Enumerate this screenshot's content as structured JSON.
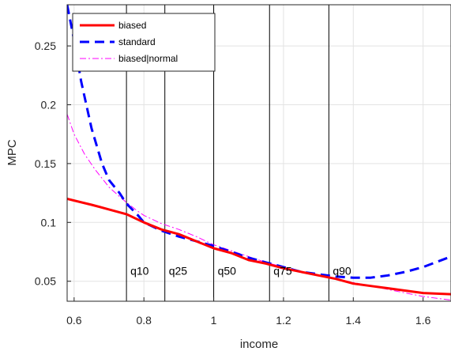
{
  "chart_data": {
    "type": "line",
    "title": "",
    "xlabel": "income",
    "ylabel": "MPC",
    "xlim": [
      0.58,
      1.68
    ],
    "ylim": [
      0.033,
      0.285
    ],
    "xticks": [
      0.6,
      0.8,
      1,
      1.2,
      1.4,
      1.6
    ],
    "xtick_labels": [
      "0.6",
      "0.8",
      "1",
      "1.2",
      "1.4",
      "1.6"
    ],
    "yticks": [
      0.05,
      0.1,
      0.15,
      0.2,
      0.25
    ],
    "ytick_labels": [
      "0.05",
      "0.1",
      "0.15",
      "0.2",
      "0.25"
    ],
    "grid": true,
    "legend_position": "top-left",
    "series": [
      {
        "name": "biased",
        "color": "#ff0000",
        "style": "solid",
        "x": [
          0.58,
          0.65,
          0.7,
          0.75,
          0.8,
          0.85,
          0.9,
          0.95,
          1.0,
          1.05,
          1.1,
          1.15,
          1.2,
          1.25,
          1.3,
          1.35,
          1.4,
          1.45,
          1.5,
          1.55,
          1.6,
          1.68
        ],
        "y": [
          0.12,
          0.115,
          0.111,
          0.107,
          0.1,
          0.094,
          0.09,
          0.084,
          0.078,
          0.074,
          0.068,
          0.065,
          0.061,
          0.058,
          0.055,
          0.052,
          0.048,
          0.046,
          0.044,
          0.042,
          0.04,
          0.039
        ]
      },
      {
        "name": "standard",
        "color": "#0000ff",
        "style": "dashed",
        "x": [
          0.58,
          0.6,
          0.62,
          0.65,
          0.68,
          0.7,
          0.73,
          0.75,
          0.78,
          0.8,
          0.85,
          0.9,
          0.95,
          1.0,
          1.05,
          1.1,
          1.15,
          1.2,
          1.25,
          1.3,
          1.35,
          1.4,
          1.45,
          1.5,
          1.55,
          1.6,
          1.68
        ],
        "y": [
          0.285,
          0.255,
          0.22,
          0.18,
          0.15,
          0.136,
          0.125,
          0.116,
          0.107,
          0.1,
          0.093,
          0.088,
          0.084,
          0.08,
          0.075,
          0.07,
          0.066,
          0.062,
          0.058,
          0.056,
          0.054,
          0.053,
          0.053,
          0.055,
          0.058,
          0.062,
          0.071
        ]
      },
      {
        "name": "biased|normal",
        "color": "#ff00ff",
        "style": "dashdot",
        "x": [
          0.58,
          0.6,
          0.63,
          0.66,
          0.7,
          0.73,
          0.75,
          0.78,
          0.8,
          0.85,
          0.9,
          0.95,
          1.0,
          1.05,
          1.1,
          1.15,
          1.2,
          1.25,
          1.3,
          1.35,
          1.4,
          1.45,
          1.5,
          1.55,
          1.6,
          1.68
        ],
        "y": [
          0.192,
          0.175,
          0.158,
          0.145,
          0.13,
          0.122,
          0.117,
          0.11,
          0.106,
          0.099,
          0.094,
          0.088,
          0.081,
          0.076,
          0.071,
          0.066,
          0.062,
          0.058,
          0.055,
          0.052,
          0.049,
          0.046,
          0.043,
          0.04,
          0.037,
          0.034
        ]
      }
    ],
    "vlines": [
      {
        "label": "q10",
        "x": 0.75
      },
      {
        "label": "q25",
        "x": 0.86
      },
      {
        "label": "q50",
        "x": 1.0
      },
      {
        "label": "q75",
        "x": 1.16
      },
      {
        "label": "q90",
        "x": 1.33
      }
    ]
  }
}
